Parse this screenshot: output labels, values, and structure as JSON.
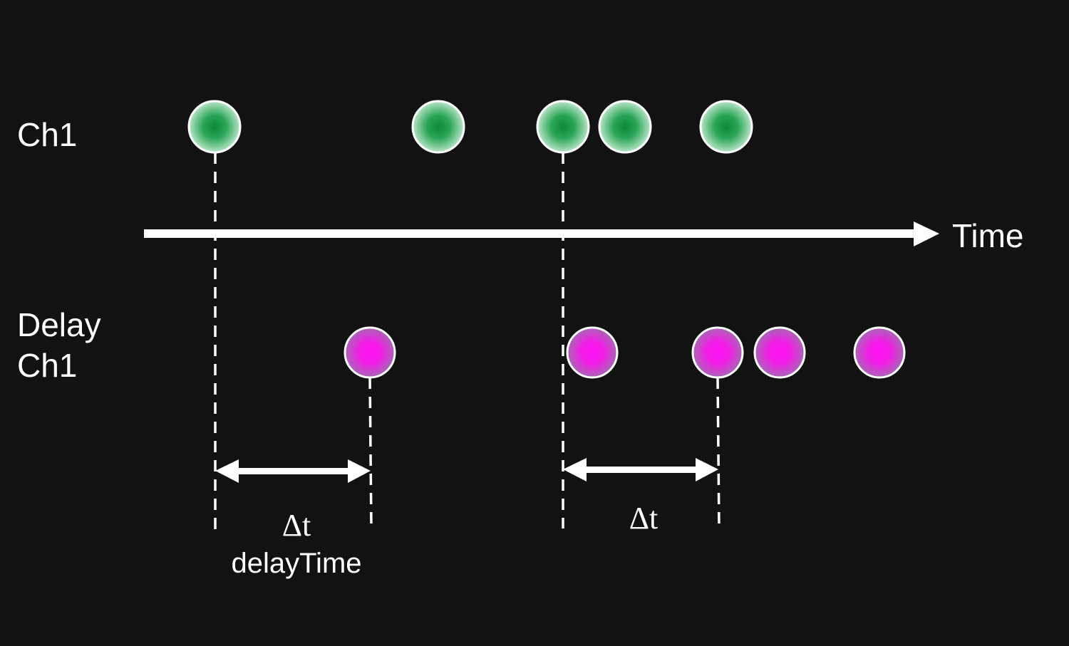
{
  "rows": {
    "ch1_label": "Ch1",
    "delay_label_line1": "Delay",
    "delay_label_line2": "Ch1"
  },
  "axis": {
    "label": "Time"
  },
  "annotations": {
    "delta_1": "Δt",
    "delta_1_caption": "delayTime",
    "delta_2": "Δt"
  },
  "colors": {
    "background": "#121212",
    "foreground": "#ffffff",
    "ch1_event": "#1e9e4a",
    "delay_event": "#ff20f0"
  }
}
